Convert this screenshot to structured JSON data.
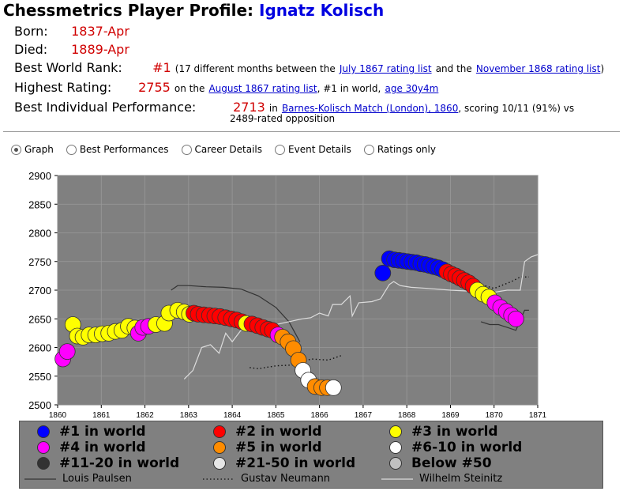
{
  "header": {
    "title_prefix": "Chessmetrics Player Profile:",
    "player_name": "Ignatz Kolisch"
  },
  "profile": {
    "born_label": "Born:",
    "born_value": "1837-Apr",
    "died_label": "Died:",
    "died_value": "1889-Apr",
    "rank_label": "Best World Rank:",
    "rank_value": "#1",
    "rank_text1": "(17 different months between the",
    "rank_link1": "July 1867 rating list",
    "rank_text2": "and the",
    "rank_link2": "November 1868 rating list",
    "rank_text3": ")",
    "rating_label": "Highest Rating:",
    "rating_value": "2755",
    "rating_text1": "on the",
    "rating_link": "August 1867 rating list",
    "rating_text2": ", #1 in world,",
    "rating_age_link": "age 30y4m",
    "perf_label": "Best Individual Performance:",
    "perf_value": "2713",
    "perf_text1": "in",
    "perf_link": "Barnes-Kolisch Match (London), 1860",
    "perf_text2": ", scoring 10/11 (91%) vs",
    "perf_text3": "2489-rated opposition"
  },
  "tabs": [
    {
      "label": "Graph",
      "selected": true
    },
    {
      "label": "Best Performances",
      "selected": false
    },
    {
      "label": "Career Details",
      "selected": false
    },
    {
      "label": "Event Details",
      "selected": false
    },
    {
      "label": "Ratings only",
      "selected": false
    }
  ],
  "colors": {
    "rank1": "#0000ff",
    "rank2": "#ff0000",
    "rank3": "#ffff00",
    "rank4": "#ff00ff",
    "rank5": "#ff8c00",
    "rank6_10": "#ffffff",
    "rank11_20": "#333333",
    "rank21_50": "#e6e6e6",
    "below50": "#c0c0c0",
    "plot_bg": "#808080"
  },
  "legend": {
    "r1": "#1 in world",
    "r2": "#2 in world",
    "r3": "#3 in world",
    "r4": "#4 in world",
    "r5": "#5 in world",
    "r6": "#6-10 in world",
    "r11": "#11-20 in world",
    "r21": "#21-50 in world",
    "rb": "Below #50",
    "l1": "Louis Paulsen",
    "l2": "Gustav Neumann",
    "l3": "Wilhelm Steinitz"
  },
  "chart_data": {
    "type": "scatter",
    "xlim": [
      1860,
      1871
    ],
    "ylim": [
      2500,
      2900
    ],
    "x_ticks": [
      "1860",
      "1861",
      "1862",
      "1863",
      "1864",
      "1865",
      "1866",
      "1867",
      "1868",
      "1869",
      "1870",
      "1871"
    ],
    "y_ticks": [
      "2500",
      "2550",
      "2600",
      "2650",
      "2700",
      "2750",
      "2800",
      "2850",
      "2900"
    ],
    "grid": true,
    "legend_position": "bottom",
    "series": [
      {
        "name": "Ignatz Kolisch",
        "rank_colored": true,
        "points": [
          [
            1860.12,
            2580,
            4
          ],
          [
            1860.22,
            2593,
            4
          ],
          [
            1860.35,
            2640,
            3
          ],
          [
            1860.45,
            2620,
            3
          ],
          [
            1860.58,
            2618,
            3
          ],
          [
            1860.72,
            2622,
            3
          ],
          [
            1860.87,
            2622,
            3
          ],
          [
            1861.02,
            2624,
            3
          ],
          [
            1861.17,
            2625,
            3
          ],
          [
            1861.32,
            2628,
            3
          ],
          [
            1861.47,
            2630,
            3
          ],
          [
            1861.62,
            2637,
            3
          ],
          [
            1861.77,
            2634,
            3
          ],
          [
            1861.85,
            2625,
            4
          ],
          [
            1861.95,
            2635,
            4
          ],
          [
            1862.08,
            2637,
            4
          ],
          [
            1862.25,
            2640,
            3
          ],
          [
            1862.45,
            2642,
            3
          ],
          [
            1862.55,
            2660,
            3
          ],
          [
            1862.75,
            2665,
            3
          ],
          [
            1862.9,
            2662,
            3
          ],
          [
            1863.02,
            2658,
            3
          ],
          [
            1863.12,
            2660,
            2
          ],
          [
            1863.22,
            2658,
            2
          ],
          [
            1863.35,
            2657,
            2
          ],
          [
            1863.48,
            2656,
            2
          ],
          [
            1863.6,
            2655,
            2
          ],
          [
            1863.72,
            2654,
            2
          ],
          [
            1863.85,
            2652,
            2
          ],
          [
            1863.98,
            2650,
            2
          ],
          [
            1864.1,
            2648,
            2
          ],
          [
            1864.22,
            2645,
            2
          ],
          [
            1864.32,
            2642,
            3
          ],
          [
            1864.45,
            2641,
            2
          ],
          [
            1864.58,
            2638,
            2
          ],
          [
            1864.7,
            2635,
            2
          ],
          [
            1864.82,
            2632,
            2
          ],
          [
            1864.92,
            2630,
            2
          ],
          [
            1865.05,
            2622,
            4
          ],
          [
            1865.15,
            2618,
            5
          ],
          [
            1865.28,
            2610,
            5
          ],
          [
            1865.4,
            2598,
            5
          ],
          [
            1865.52,
            2578,
            5
          ],
          [
            1865.62,
            2560,
            6
          ],
          [
            1865.75,
            2543,
            6
          ],
          [
            1865.9,
            2532,
            5
          ],
          [
            1866.05,
            2530,
            5
          ],
          [
            1866.18,
            2530,
            5
          ],
          [
            1866.32,
            2530,
            6
          ],
          [
            1867.45,
            2730,
            1
          ],
          [
            1867.6,
            2755,
            1
          ],
          [
            1867.72,
            2753,
            1
          ],
          [
            1867.82,
            2752,
            1
          ],
          [
            1867.92,
            2751,
            1
          ],
          [
            1868.02,
            2750,
            1
          ],
          [
            1868.12,
            2749,
            1
          ],
          [
            1868.22,
            2748,
            1
          ],
          [
            1868.32,
            2746,
            1
          ],
          [
            1868.42,
            2745,
            1
          ],
          [
            1868.52,
            2743,
            1
          ],
          [
            1868.62,
            2741,
            1
          ],
          [
            1868.72,
            2739,
            1
          ],
          [
            1868.82,
            2736,
            1
          ],
          [
            1868.92,
            2732,
            2
          ],
          [
            1869.02,
            2728,
            2
          ],
          [
            1869.12,
            2725,
            2
          ],
          [
            1869.22,
            2721,
            2
          ],
          [
            1869.32,
            2717,
            2
          ],
          [
            1869.42,
            2713,
            2
          ],
          [
            1869.52,
            2707,
            2
          ],
          [
            1869.62,
            2700,
            3
          ],
          [
            1869.75,
            2693,
            3
          ],
          [
            1869.88,
            2688,
            3
          ],
          [
            1870.02,
            2678,
            4
          ],
          [
            1870.15,
            2670,
            4
          ],
          [
            1870.28,
            2663,
            4
          ],
          [
            1870.4,
            2656,
            4
          ],
          [
            1870.5,
            2650,
            4
          ]
        ]
      },
      {
        "name": "Louis Paulsen",
        "style": "solid-dark",
        "points": [
          [
            1862.6,
            2700
          ],
          [
            1862.75,
            2708
          ],
          [
            1863.0,
            2708
          ],
          [
            1863.4,
            2706
          ],
          [
            1863.8,
            2705
          ],
          [
            1864.2,
            2702
          ],
          [
            1864.6,
            2690
          ],
          [
            1865.0,
            2670
          ],
          [
            1865.3,
            2645
          ],
          [
            1865.55,
            2610
          ],
          [
            1869.7,
            2645
          ],
          [
            1869.9,
            2640
          ],
          [
            1870.1,
            2640
          ],
          [
            1870.3,
            2635
          ],
          [
            1870.5,
            2630
          ],
          [
            1870.7,
            2665
          ],
          [
            1870.8,
            2665
          ]
        ]
      },
      {
        "name": "Gustav Neumann",
        "style": "dotted",
        "points": [
          [
            1864.4,
            2565
          ],
          [
            1864.6,
            2563
          ],
          [
            1865.0,
            2568
          ],
          [
            1865.5,
            2570
          ],
          [
            1865.8,
            2580
          ],
          [
            1866.2,
            2578
          ],
          [
            1866.5,
            2586
          ],
          [
            1869.0,
            2720
          ],
          [
            1869.4,
            2715
          ],
          [
            1869.7,
            2710
          ],
          [
            1870.0,
            2703
          ],
          [
            1870.4,
            2715
          ],
          [
            1870.6,
            2723
          ],
          [
            1870.8,
            2723
          ]
        ]
      },
      {
        "name": "Wilhelm Steinitz",
        "style": "solid-light",
        "points": [
          [
            1862.9,
            2545
          ],
          [
            1863.1,
            2560
          ],
          [
            1863.3,
            2600
          ],
          [
            1863.5,
            2605
          ],
          [
            1863.7,
            2590
          ],
          [
            1863.85,
            2625
          ],
          [
            1864.0,
            2610
          ],
          [
            1864.2,
            2630
          ],
          [
            1864.4,
            2632
          ],
          [
            1864.6,
            2640
          ],
          [
            1865.0,
            2640
          ],
          [
            1865.3,
            2645
          ],
          [
            1865.6,
            2650
          ],
          [
            1865.8,
            2652
          ],
          [
            1866.0,
            2660
          ],
          [
            1866.2,
            2655
          ],
          [
            1866.3,
            2675
          ],
          [
            1866.5,
            2675
          ],
          [
            1866.7,
            2690
          ],
          [
            1866.75,
            2655
          ],
          [
            1866.9,
            2678
          ],
          [
            1867.2,
            2680
          ],
          [
            1867.4,
            2685
          ],
          [
            1867.6,
            2710
          ],
          [
            1867.7,
            2715
          ],
          [
            1867.85,
            2708
          ],
          [
            1868.1,
            2705
          ],
          [
            1868.5,
            2703
          ],
          [
            1869.0,
            2700
          ],
          [
            1869.5,
            2698
          ],
          [
            1869.9,
            2695
          ],
          [
            1870.3,
            2700
          ],
          [
            1870.6,
            2700
          ],
          [
            1870.7,
            2750
          ],
          [
            1870.85,
            2758
          ],
          [
            1871.0,
            2762
          ]
        ]
      }
    ]
  }
}
